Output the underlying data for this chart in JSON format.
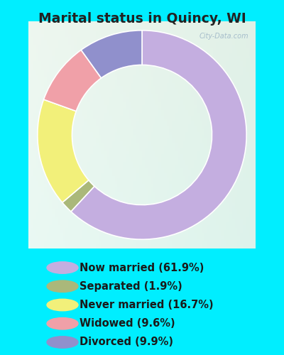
{
  "title": "Marital status in Quincy, WI",
  "slices": [
    {
      "label": "Now married (61.9%)",
      "value": 61.9,
      "color": "#c4aee0"
    },
    {
      "label": "Separated (1.9%)",
      "value": 1.9,
      "color": "#aab87a"
    },
    {
      "label": "Never married (16.7%)",
      "value": 16.7,
      "color": "#f2f07a"
    },
    {
      "label": "Widowed (9.6%)",
      "value": 9.6,
      "color": "#f0a0a8"
    },
    {
      "label": "Divorced (9.9%)",
      "value": 9.9,
      "color": "#9090cc"
    }
  ],
  "bg_outer": "#00eeff",
  "bg_chart_tl": "#e8f5e8",
  "bg_chart_br": "#d0ece8",
  "title_color": "#222222",
  "title_fontsize": 13.5,
  "watermark": "City-Data.com",
  "legend_fontsize": 10.5,
  "donut_width": 0.38
}
